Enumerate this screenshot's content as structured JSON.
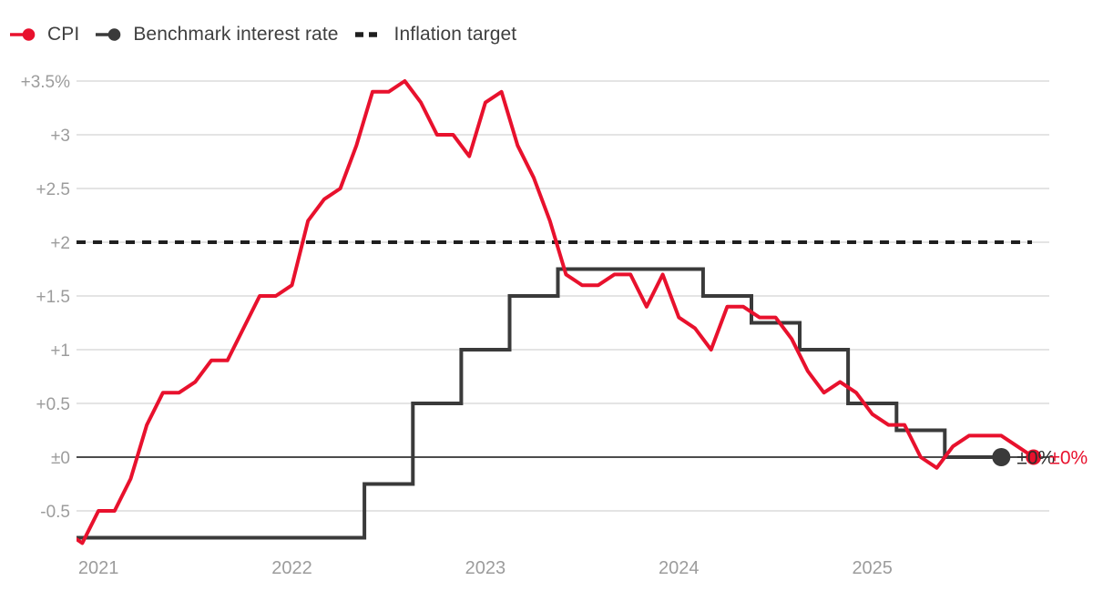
{
  "legend": {
    "items": [
      {
        "id": "cpi",
        "label": "CPI",
        "color": "#e8112d",
        "marker": "line-dot"
      },
      {
        "id": "benchmark",
        "label": "Benchmark interest rate",
        "color": "#3a3a3a",
        "marker": "line-dot"
      },
      {
        "id": "target",
        "label": "Inflation target",
        "color": "#1f1f1f",
        "marker": "dashes"
      }
    ]
  },
  "chart_data": {
    "type": "line",
    "title": "",
    "xlabel": "",
    "ylabel": "",
    "x_unit": "month",
    "ylim": [
      -0.8,
      3.6
    ],
    "grid": true,
    "legend_position": "top-left",
    "axis": {
      "grid_color": "#d4d4d4",
      "zero_line_color": "#4c4c4c",
      "tick_label_color": "#9c9c9c"
    },
    "series": [
      {
        "name": "Benchmark interest rate",
        "color": "#3a3a3a",
        "line_style": "step",
        "end_marker": true,
        "start": "2020-11",
        "end": "2025-09",
        "values": [
          -0.75,
          -0.75,
          -0.75,
          -0.75,
          -0.75,
          -0.75,
          -0.75,
          -0.75,
          -0.75,
          -0.75,
          -0.75,
          -0.75,
          -0.75,
          -0.75,
          -0.75,
          -0.75,
          -0.75,
          -0.75,
          -0.75,
          -0.25,
          -0.25,
          -0.25,
          0.5,
          0.5,
          0.5,
          1.0,
          1.0,
          1.0,
          1.5,
          1.5,
          1.5,
          1.75,
          1.75,
          1.75,
          1.75,
          1.75,
          1.75,
          1.75,
          1.75,
          1.75,
          1.5,
          1.5,
          1.5,
          1.25,
          1.25,
          1.25,
          1.0,
          1.0,
          1.0,
          0.5,
          0.5,
          0.5,
          0.25,
          0.25,
          0.25,
          0.0,
          0.0,
          0.0,
          0.0
        ]
      },
      {
        "name": "CPI",
        "color": "#e8112d",
        "line_style": "solid",
        "end_marker": true,
        "start": "2020-11",
        "end": "2025-11",
        "values": [
          -0.7,
          -0.8,
          -0.5,
          -0.5,
          -0.2,
          0.3,
          0.6,
          0.6,
          0.7,
          0.9,
          0.9,
          1.2,
          1.5,
          1.5,
          1.6,
          2.2,
          2.4,
          2.5,
          2.9,
          3.4,
          3.4,
          3.5,
          3.3,
          3.0,
          3.0,
          2.8,
          3.3,
          3.4,
          2.9,
          2.6,
          2.2,
          1.7,
          1.6,
          1.6,
          1.7,
          1.7,
          1.4,
          1.7,
          1.3,
          1.2,
          1.0,
          1.4,
          1.4,
          1.3,
          1.3,
          1.1,
          0.8,
          0.6,
          0.7,
          0.6,
          0.4,
          0.3,
          0.3,
          0.0,
          -0.1,
          0.1,
          0.2,
          0.2,
          0.2,
          0.1,
          0.0
        ]
      },
      {
        "name": "Inflation target",
        "color": "#1f1f1f",
        "line_style": "dashed",
        "constant": 2
      }
    ],
    "yticks": [
      {
        "value": 3.5,
        "label": "+3.5%"
      },
      {
        "value": 3,
        "label": "+3"
      },
      {
        "value": 2.5,
        "label": "+2.5"
      },
      {
        "value": 2,
        "label": "+2"
      },
      {
        "value": 1.5,
        "label": "+1.5"
      },
      {
        "value": 1,
        "label": "+1"
      },
      {
        "value": 0.5,
        "label": "+0.5"
      },
      {
        "value": 0,
        "label": "±0"
      },
      {
        "value": -0.5,
        "label": "-0.5"
      }
    ],
    "xticks": [
      {
        "month_index": 2,
        "label": "2021"
      },
      {
        "month_index": 14,
        "label": "2022"
      },
      {
        "month_index": 26,
        "label": "2023"
      },
      {
        "month_index": 38,
        "label": "2024"
      },
      {
        "month_index": 50,
        "label": "2025"
      }
    ],
    "end_labels": [
      {
        "series": "Benchmark interest rate",
        "text": "±0%",
        "color": "#2d2d2d"
      },
      {
        "series": "CPI",
        "text": "±0%",
        "color": "#e8112d"
      }
    ]
  }
}
